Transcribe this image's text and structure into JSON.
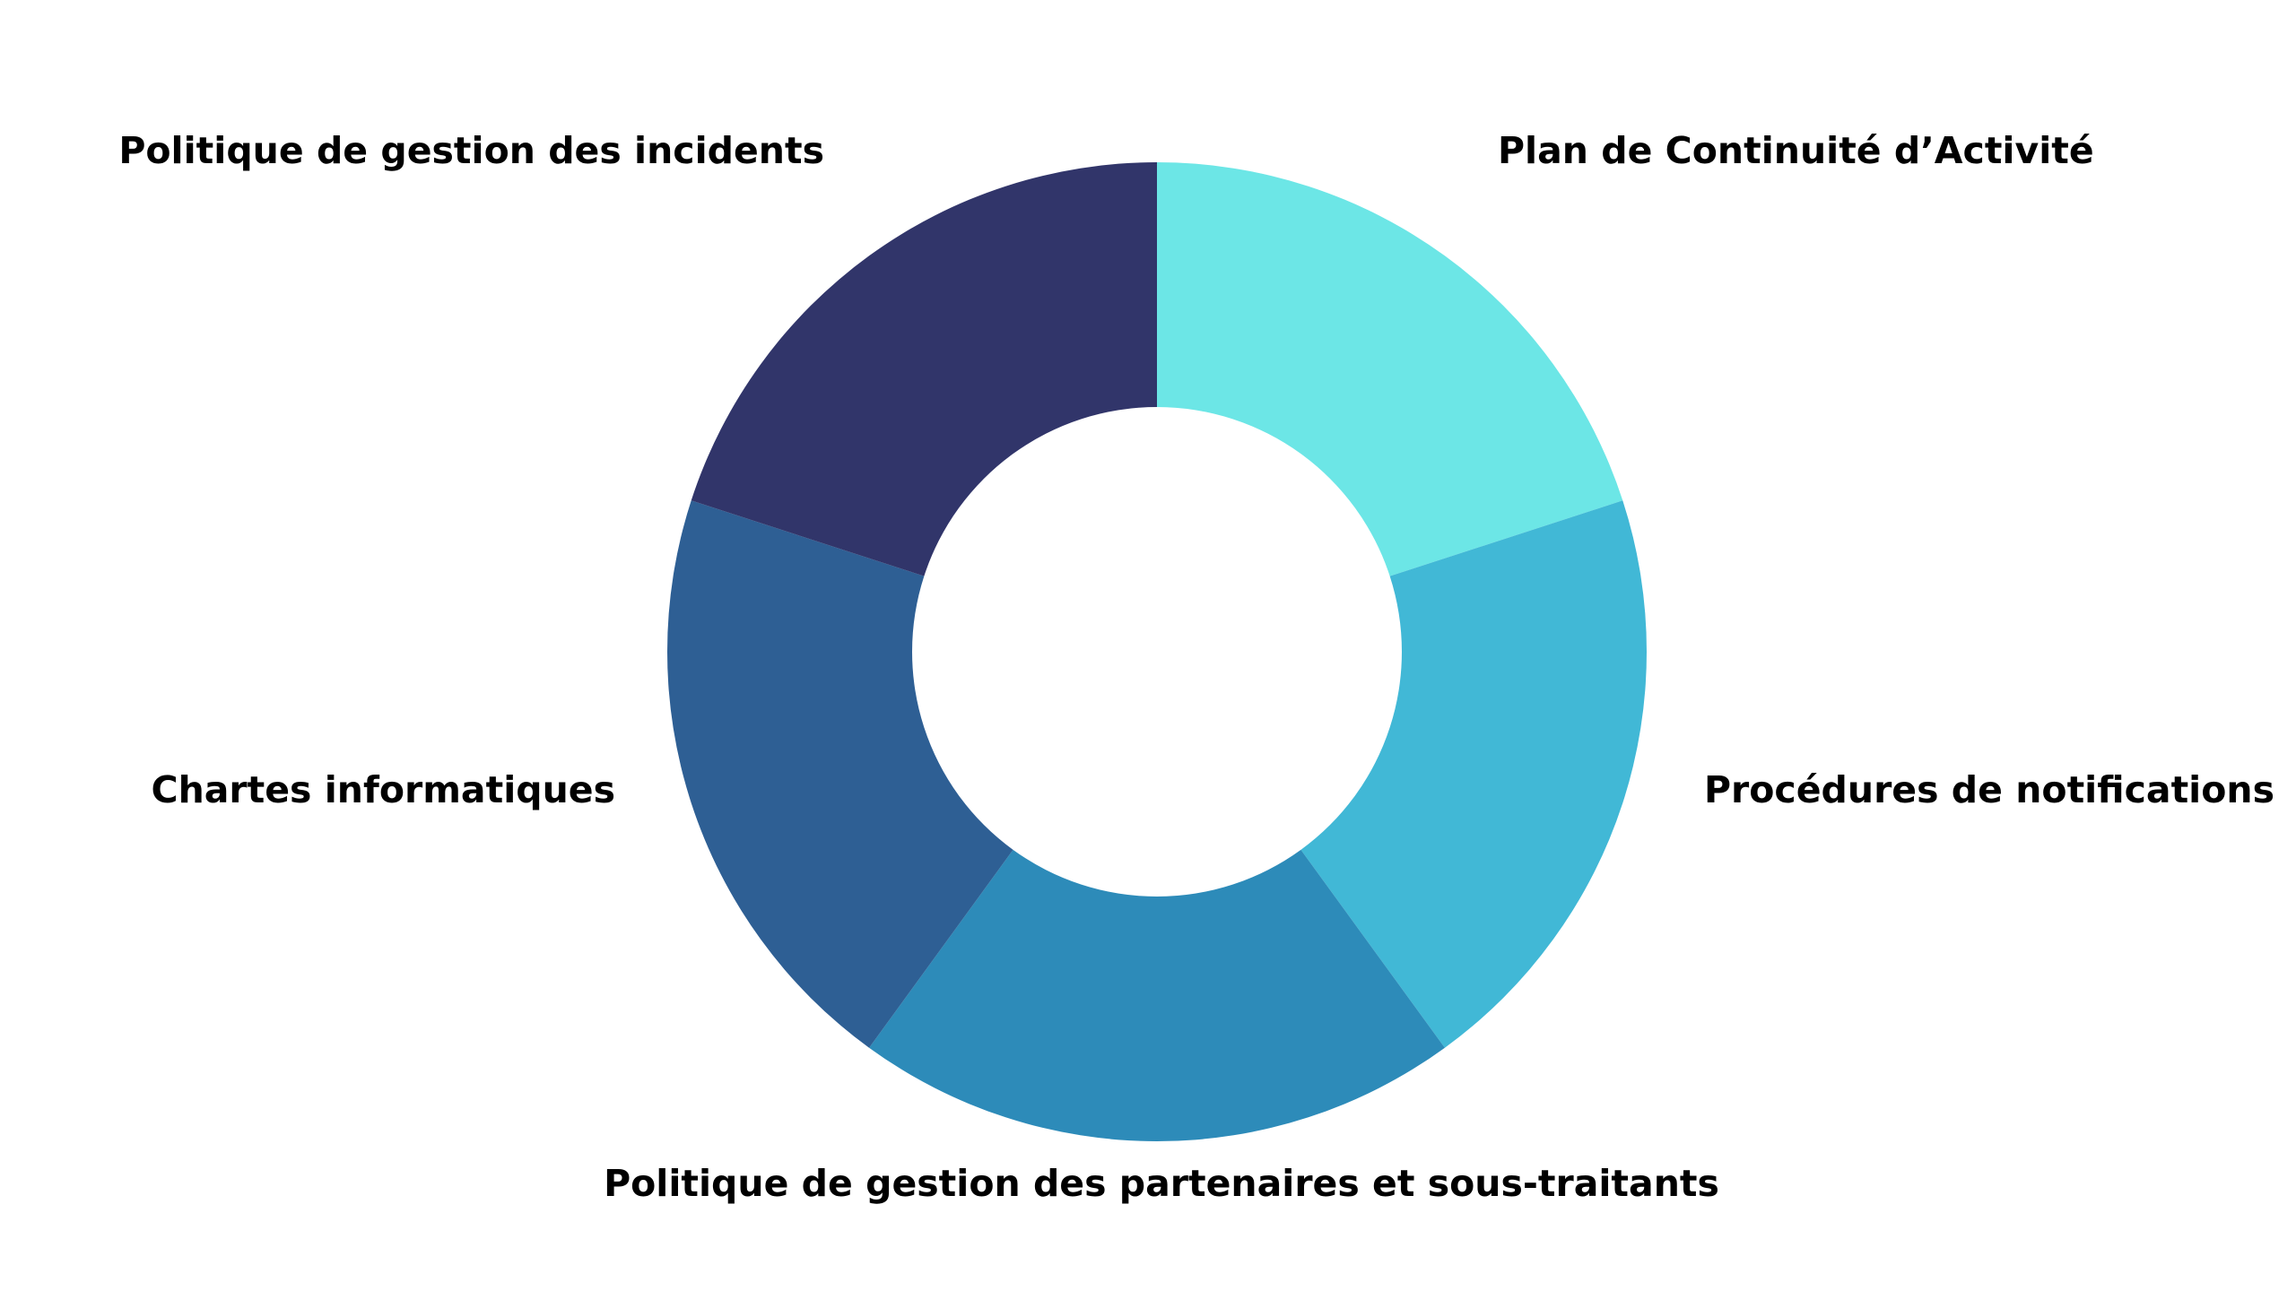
{
  "chart_data": {
    "type": "pie",
    "donut": true,
    "categories": [
      "Plan de Continuité d’Activité",
      "Procédures de notifications",
      "Politique de gestion des partenaires et sous-traitants",
      "Chartes informatiques",
      "Politique de gestion des incidents"
    ],
    "values": [
      20,
      20,
      20,
      20,
      20
    ],
    "colors": [
      "#6ce6e6",
      "#41b8d6",
      "#2d8bb9",
      "#2e5f94",
      "#31356a"
    ],
    "title": "",
    "legend": "none"
  }
}
